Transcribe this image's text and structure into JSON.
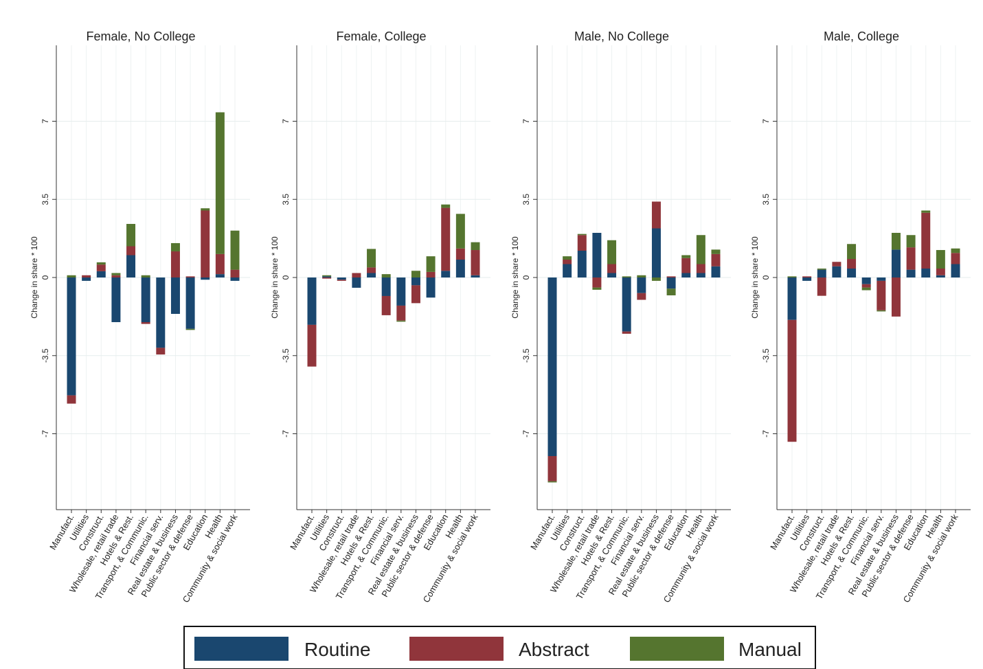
{
  "chart_data": [
    {
      "type": "bar",
      "stacked": true,
      "title": "Female, No College",
      "ylabel": "Change in share * 100",
      "categories": [
        "Manufact.",
        "Utilities",
        "Construct.",
        "Wholesale, retail trade",
        "Hotels & Rest.",
        "Transport, & Communic.",
        "Financial serv.",
        "Real estate & business",
        "Public sector & defense",
        "Education",
        "Health",
        "Community & social work"
      ],
      "ylim": [
        -10.4,
        10.4
      ],
      "yticks": [
        -7,
        -3.5,
        0,
        3.5,
        7
      ],
      "grid": true,
      "series": [
        {
          "name": "Routine",
          "color": "#1a476f",
          "values": [
            -5.28,
            -0.15,
            0.28,
            -2.0,
            1.0,
            -2.0,
            -3.15,
            -1.63,
            -2.3,
            -0.1,
            0.15,
            -0.15
          ]
        },
        {
          "name": "Abstract",
          "color": "#90353b",
          "values": [
            -0.37,
            0.1,
            0.3,
            0.1,
            0.4,
            -0.08,
            -0.3,
            1.17,
            0.05,
            3.0,
            0.9,
            0.35
          ]
        },
        {
          "name": "Manual",
          "color": "#55752f",
          "values": [
            0.1,
            0,
            0.1,
            0.1,
            1.0,
            0.1,
            0,
            0.37,
            -0.05,
            0.1,
            6.35,
            1.75
          ]
        }
      ]
    },
    {
      "type": "bar",
      "stacked": true,
      "title": "Female, College",
      "ylabel": "Change in share * 100",
      "categories": [
        "Manufact.",
        "Utilities",
        "Construct.",
        "Wholesale, retail trade",
        "Hotels & Rest.",
        "Transport, & Communic.",
        "Financial serv.",
        "Real estate & business",
        "Public sector & defense",
        "Education",
        "Health",
        "Community & social work"
      ],
      "ylim": [
        -10.4,
        10.4
      ],
      "yticks": [
        -7,
        -3.5,
        0,
        3.5,
        7
      ],
      "grid": true,
      "series": [
        {
          "name": "Routine",
          "color": "#1a476f",
          "values": [
            -2.12,
            0.05,
            -0.1,
            -0.46,
            0.2,
            -0.83,
            -1.26,
            -0.35,
            -0.9,
            0.3,
            0.8,
            0.1
          ]
        },
        {
          "name": "Abstract",
          "color": "#90353b",
          "values": [
            -1.87,
            -0.05,
            -0.05,
            0.2,
            0.25,
            -0.86,
            -0.67,
            -0.8,
            0.25,
            2.82,
            0.5,
            1.13
          ]
        },
        {
          "name": "Manual",
          "color": "#55752f",
          "values": [
            0,
            0.05,
            0,
            0,
            0.83,
            0.15,
            -0.05,
            0.3,
            0.7,
            0.15,
            1.55,
            0.35
          ]
        }
      ]
    },
    {
      "type": "bar",
      "stacked": true,
      "title": "Male, No College",
      "ylabel": "Change in share * 100",
      "categories": [
        "Manufact.",
        "Utilities",
        "Construct.",
        "Wholesale, retail trade",
        "Hotels & Rest.",
        "Transport, & Communic.",
        "Financial serv.",
        "Real estate & business",
        "Public sector & defense",
        "Education",
        "Health",
        "Community & social work"
      ],
      "ylim": [
        -10.4,
        10.4
      ],
      "yticks": [
        -7,
        -3.5,
        0,
        3.5,
        7
      ],
      "grid": true,
      "series": [
        {
          "name": "Routine",
          "color": "#1a476f",
          "values": [
            -8.0,
            0.6,
            1.2,
            2.0,
            0.2,
            -2.42,
            -0.7,
            2.2,
            -0.5,
            0.2,
            0.2,
            0.5
          ]
        },
        {
          "name": "Abstract",
          "color": "#90353b",
          "values": [
            -1.13,
            0.2,
            0.7,
            -0.45,
            0.4,
            -0.1,
            -0.3,
            1.2,
            0.05,
            0.67,
            0.4,
            0.55
          ]
        },
        {
          "name": "Manual",
          "color": "#55752f",
          "values": [
            -0.05,
            0.15,
            0.05,
            -0.1,
            1.07,
            0.05,
            0.1,
            -0.15,
            -0.3,
            0.13,
            1.3,
            0.2
          ]
        }
      ]
    },
    {
      "type": "bar",
      "stacked": true,
      "title": "Male, College",
      "ylabel": "Change in share * 100",
      "categories": [
        "Manufact.",
        "Utilities",
        "Construct.",
        "Wholesale, retail trade",
        "Hotels & Rest.",
        "Transport, & Communic.",
        "Financial serv.",
        "Real estate & business",
        "Public sector & defense",
        "Education",
        "Health",
        "Community & social work"
      ],
      "ylim": [
        -10.4,
        10.4
      ],
      "yticks": [
        -7,
        -3.5,
        0,
        3.5,
        7
      ],
      "grid": true,
      "series": [
        {
          "name": "Routine",
          "color": "#1a476f",
          "values": [
            -1.9,
            -0.15,
            0.35,
            0.5,
            0.4,
            -0.3,
            -0.15,
            1.25,
            0.35,
            0.4,
            0.1,
            0.6
          ]
        },
        {
          "name": "Abstract",
          "color": "#90353b",
          "values": [
            -5.46,
            0.05,
            -0.82,
            0.2,
            0.43,
            -0.15,
            -1.32,
            -1.75,
            1.0,
            2.5,
            0.3,
            0.5
          ]
        },
        {
          "name": "Manual",
          "color": "#55752f",
          "values": [
            0.05,
            0,
            0.05,
            0,
            0.67,
            -0.12,
            -0.05,
            0.75,
            0.55,
            0.1,
            0.83,
            0.2
          ]
        }
      ]
    }
  ]
}
